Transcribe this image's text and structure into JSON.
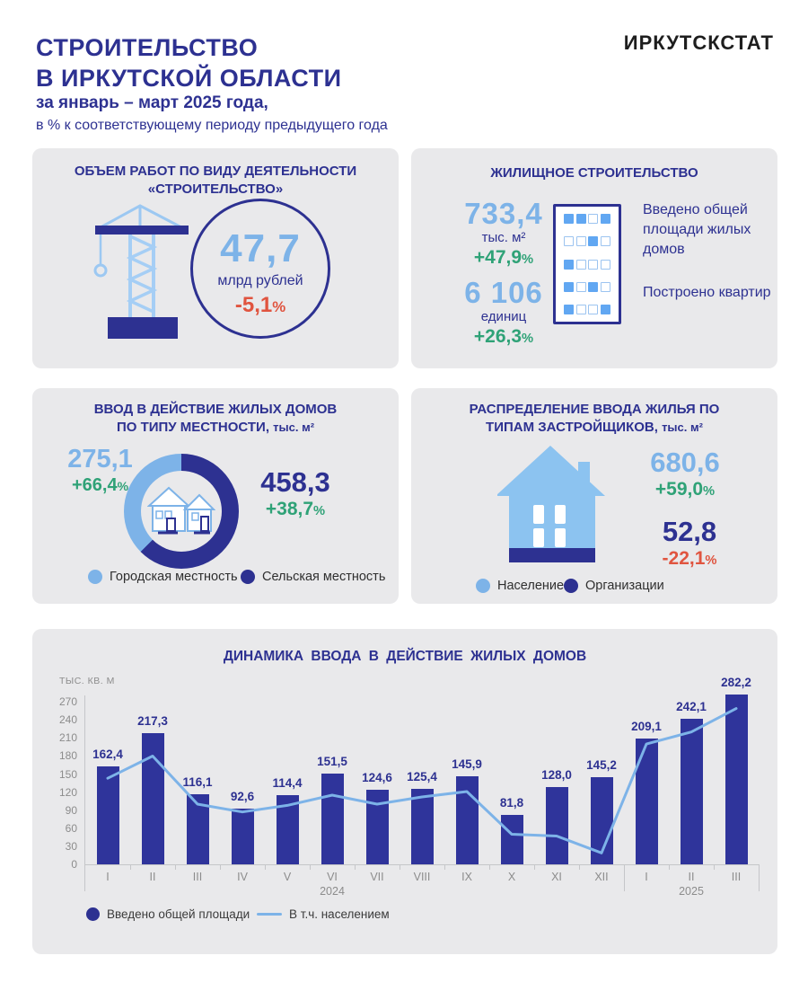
{
  "header": {
    "title_line1": "СТРОИТЕЛЬСТВО",
    "title_line2": "В ИРКУТСКОЙ ОБЛАСТИ",
    "subtitle_bold": "за январь – март 2025 года,",
    "subtitle": "в % к соответствующему периоду предыдущего года",
    "brand": "ИРКУТСКСТАТ"
  },
  "colors": {
    "navy": "#2d3191",
    "light_blue": "#7db3e8",
    "green": "#2fa277",
    "red": "#e0543f",
    "card_bg": "#e9e9eb"
  },
  "cards": {
    "volume": {
      "title_line1": "ОБЪЕМ РАБОТ ПО ВИДУ ДЕЯТЕЛЬНОСТИ",
      "title_line2": "«СТРОИТЕЛЬСТВО»",
      "value": "47,7",
      "unit": "млрд  рублей",
      "change": "-5,1%"
    },
    "housing": {
      "title": "ЖИЛИЩНОЕ  СТРОИТЕЛЬСТВО",
      "area": {
        "value": "733,4",
        "unit": "тыс. м²",
        "change": "+47,9%",
        "label": "Введено общей площади жилых домов"
      },
      "apartments": {
        "value": "6 106",
        "unit": "единиц",
        "change": "+26,3%",
        "label": "Построено квартир"
      },
      "windows_pattern": [
        "FFOF",
        "OOFO",
        "FOOO",
        "FOFO",
        "FOOF"
      ]
    },
    "locality": {
      "title_line1": "ВВОД В ДЕЙСТВИЕ ЖИЛЫХ ДОМОВ",
      "title_line2": "ПО ТИПУ МЕСТНОСТИ,",
      "title_unit": "тыс. м²",
      "urban": {
        "value": "275,1",
        "change": "+66,4%"
      },
      "rural": {
        "value": "458,3",
        "change": "+38,7%"
      },
      "donut": {
        "rural_pct": 62.5,
        "urban_pct": 37.5
      },
      "legend": [
        {
          "label": "Городская местность"
        },
        {
          "label": "Сельская местность"
        }
      ]
    },
    "developers": {
      "title_line1": "РАСПРЕДЕЛЕНИЕ  ВВОДА ЖИЛЬЯ ПО",
      "title_line2": "ТИПАМ  ЗАСТРОЙЩИКОВ,",
      "title_unit": "тыс. м²",
      "population": {
        "value": "680,6",
        "change": "+59,0%"
      },
      "organizations": {
        "value": "52,8",
        "change": "-22,1%"
      },
      "legend": [
        {
          "label": "Население"
        },
        {
          "label": "Организации"
        }
      ]
    }
  },
  "chart_data": {
    "type": "bar",
    "title": "ДИНАМИКА  ВВОДА  В ДЕЙСТВИЕ  ЖИЛЫХ  ДОМОВ",
    "ylabel": "ТЫС. КВ. М",
    "ylim": [
      0,
      270
    ],
    "yticks": [
      0,
      30,
      60,
      90,
      120,
      150,
      180,
      210,
      240,
      270
    ],
    "grid": false,
    "legend_position": "bottom",
    "categories": [
      "I",
      "II",
      "III",
      "IV",
      "V",
      "VI",
      "VII",
      "VIII",
      "IX",
      "X",
      "XI",
      "XII",
      "I",
      "II",
      "III"
    ],
    "year_labels": [
      {
        "text": "2024",
        "under_index": 5
      },
      {
        "text": "2025",
        "under_index": 13
      }
    ],
    "series": [
      {
        "name": "Введено общей  площади",
        "type": "bar",
        "values": [
          162.4,
          217.3,
          116.1,
          92.6,
          114.4,
          151.5,
          124.6,
          125.4,
          145.9,
          81.8,
          128.0,
          145.2,
          209.1,
          242.1,
          282.2
        ],
        "labels": [
          "162,4",
          "217,3",
          "116,1",
          "92,6",
          "114,4",
          "151,5",
          "124,6",
          "125,4",
          "145,9",
          "81,8",
          "128,0",
          "145,2",
          "209,1",
          "242,1",
          "282,2"
        ]
      },
      {
        "name": "В т.ч.  населением",
        "type": "line",
        "values": [
          143,
          180,
          100,
          87,
          98,
          115,
          100,
          112,
          121,
          50,
          47,
          19,
          200,
          220,
          259
        ]
      }
    ]
  }
}
